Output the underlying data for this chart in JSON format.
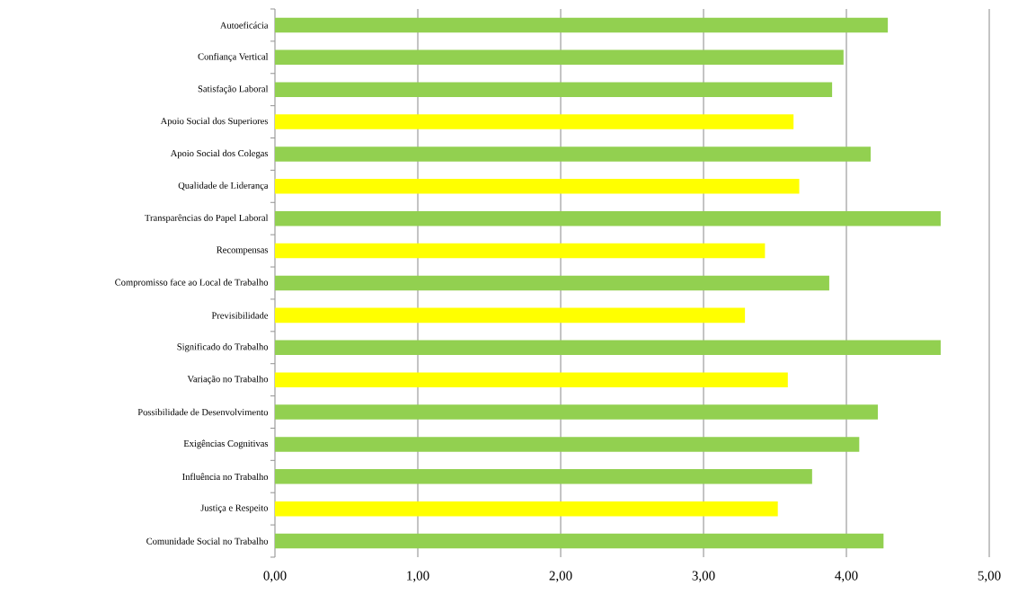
{
  "chart_data": {
    "type": "bar",
    "orientation": "horizontal",
    "categories": [
      "Autoeficácia",
      "Confiança Vertical",
      "Satisfação Laboral",
      "Apoio Social dos Superiores",
      "Apoio Social dos Colegas",
      "Qualidade de Liderança",
      "Transparências do Papel Laboral",
      "Recompensas",
      "Compromisso face ao Local de Trabalho",
      "Previsibilidade",
      "Significado do Trabalho",
      "Variação no Trabalho",
      "Possibilidade de Desenvolvimento",
      "Exigências Cognitivas",
      "Influência no Trabalho",
      "Justiça e Respeito",
      "Comunidade Social no Trabalho"
    ],
    "values": [
      4.29,
      3.98,
      3.9,
      3.63,
      4.17,
      3.67,
      4.66,
      3.43,
      3.88,
      3.29,
      4.66,
      3.59,
      4.22,
      4.09,
      3.76,
      3.52,
      4.26
    ],
    "colors": [
      "#92d050",
      "#92d050",
      "#92d050",
      "#ffff00",
      "#92d050",
      "#ffff00",
      "#92d050",
      "#ffff00",
      "#92d050",
      "#ffff00",
      "#92d050",
      "#ffff00",
      "#92d050",
      "#92d050",
      "#92d050",
      "#ffff00",
      "#92d050"
    ],
    "xlim": [
      0,
      5
    ],
    "xticks": [
      {
        "value": 0,
        "label": "0,00"
      },
      {
        "value": 1,
        "label": "1,00"
      },
      {
        "value": 2,
        "label": "2,00"
      },
      {
        "value": 3,
        "label": "3,00"
      },
      {
        "value": 4,
        "label": "4,00"
      },
      {
        "value": 5,
        "label": "5,00"
      }
    ],
    "grid": "x"
  }
}
